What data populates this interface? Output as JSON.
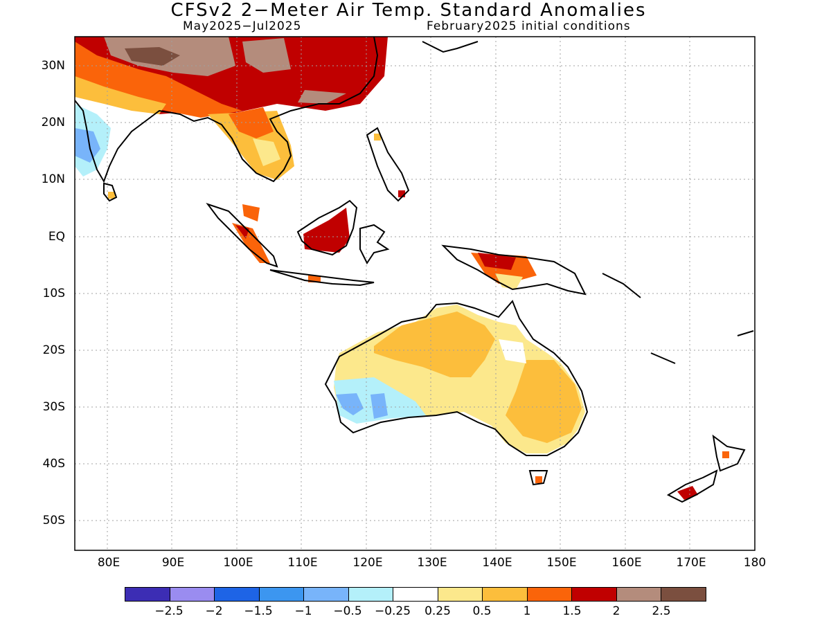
{
  "header": {
    "title": "CFSv2 2−Meter Air Temp. Standard Anomalies",
    "period": "May2025−Jul2025",
    "init": "February2025 initial conditions"
  },
  "axes": {
    "lat_ticks": [
      "30N",
      "20N",
      "10N",
      "EQ",
      "10S",
      "20S",
      "30S",
      "40S",
      "50S"
    ],
    "lon_ticks": [
      "80E",
      "90E",
      "100E",
      "110E",
      "120E",
      "130E",
      "140E",
      "150E",
      "160E",
      "170E",
      "180"
    ],
    "lon_range": [
      75,
      180
    ],
    "lat_range": [
      -55,
      35
    ]
  },
  "colorbar": {
    "colors": [
      "#3c2db4",
      "#9a8cf0",
      "#1e64e6",
      "#3c96f0",
      "#78b4fa",
      "#b4f0fa",
      "#ffffff",
      "#fce88c",
      "#fcbe3c",
      "#fa640a",
      "#c00000",
      "#b48c7c",
      "#7b4f3f"
    ],
    "labels": [
      "−2.5",
      "−2",
      "−1.5",
      "−1",
      "−0.5",
      "−0.25",
      "0.25",
      "0.5",
      "1",
      "1.5",
      "2",
      "2.5"
    ]
  },
  "map_data": {
    "coastline_color": "#000000",
    "anomaly_regions": [
      {
        "name": "tibet",
        "level": 2.5,
        "color": "#7b4f3f"
      },
      {
        "name": "china",
        "level": 2,
        "color": "#c00000"
      },
      {
        "name": "borneo",
        "level": 2,
        "color": "#c00000"
      },
      {
        "name": "australia-north",
        "level": 1,
        "color": "#fcbe3c"
      },
      {
        "name": "australia-west",
        "level": -0.5,
        "color": "#b4f0fa"
      },
      {
        "name": "india-west",
        "level": -1,
        "color": "#78b4fa"
      }
    ]
  }
}
